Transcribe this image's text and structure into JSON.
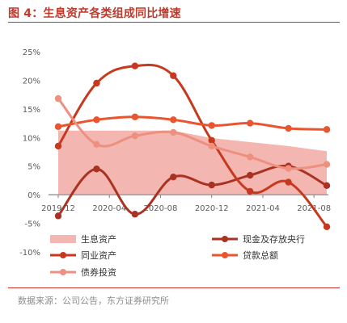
{
  "title": "图 4：生息资产各类组成同比增速",
  "source": "数据来源：公司公告，东方证券研究所",
  "chart_data": {
    "type": "line",
    "x_ticks": [
      "2019-12",
      "2020-04",
      "2020-08",
      "2020-12",
      "2021-04",
      "2021-08"
    ],
    "x_range": [
      "2019-12",
      "2021-09"
    ],
    "y_ticks": [
      "25%",
      "20%",
      "15%",
      "10%",
      "5%",
      "0%",
      "-5%",
      "-10%"
    ],
    "y_range": [
      -10,
      25
    ],
    "series": [
      {
        "name": "生息资产",
        "kind": "area",
        "color": "#f4b6b0",
        "points": [
          [
            "2019-12",
            11.2
          ],
          [
            "2020-03",
            11.2
          ],
          [
            "2020-06",
            11.2
          ],
          [
            "2020-09",
            11.2
          ],
          [
            "2020-12",
            9.9
          ],
          [
            "2021-03",
            9.2
          ],
          [
            "2021-06",
            8.5
          ],
          [
            "2021-09",
            7.6
          ]
        ]
      },
      {
        "name": "现金及存放央行",
        "kind": "line",
        "color": "#a93222",
        "points": [
          [
            "2019-12",
            -3.7
          ],
          [
            "2020-03",
            4.5
          ],
          [
            "2020-06",
            -3.4
          ],
          [
            "2020-09",
            3.1
          ],
          [
            "2020-12",
            1.7
          ],
          [
            "2021-03",
            3.4
          ],
          [
            "2021-06",
            5.0
          ],
          [
            "2021-09",
            1.6
          ]
        ]
      },
      {
        "name": "同业资产",
        "kind": "line",
        "color": "#c7391e",
        "points": [
          [
            "2019-12",
            8.5
          ],
          [
            "2020-03",
            19.5
          ],
          [
            "2020-06",
            22.5
          ],
          [
            "2020-09",
            20.8
          ],
          [
            "2020-12",
            9.5
          ],
          [
            "2021-03",
            0.6
          ],
          [
            "2021-06",
            2.2
          ],
          [
            "2021-09",
            -5.6
          ]
        ]
      },
      {
        "name": "贷款总额",
        "kind": "line",
        "color": "#e8552f",
        "points": [
          [
            "2019-12",
            11.9
          ],
          [
            "2020-03",
            13.1
          ],
          [
            "2020-06",
            13.6
          ],
          [
            "2020-09",
            13.1
          ],
          [
            "2020-12",
            12.1
          ],
          [
            "2021-03",
            12.5
          ],
          [
            "2021-06",
            11.6
          ],
          [
            "2021-09",
            11.4
          ]
        ]
      },
      {
        "name": "债券投资",
        "kind": "line",
        "color": "#ee9080",
        "points": [
          [
            "2019-12",
            16.8
          ],
          [
            "2020-03",
            8.8
          ],
          [
            "2020-06",
            10.3
          ],
          [
            "2020-09",
            10.9
          ],
          [
            "2020-12",
            8.5
          ],
          [
            "2021-03",
            6.6
          ],
          [
            "2021-06",
            4.6
          ],
          [
            "2021-09",
            5.3
          ]
        ]
      }
    ],
    "legend_position": "bottom",
    "grid": false
  }
}
